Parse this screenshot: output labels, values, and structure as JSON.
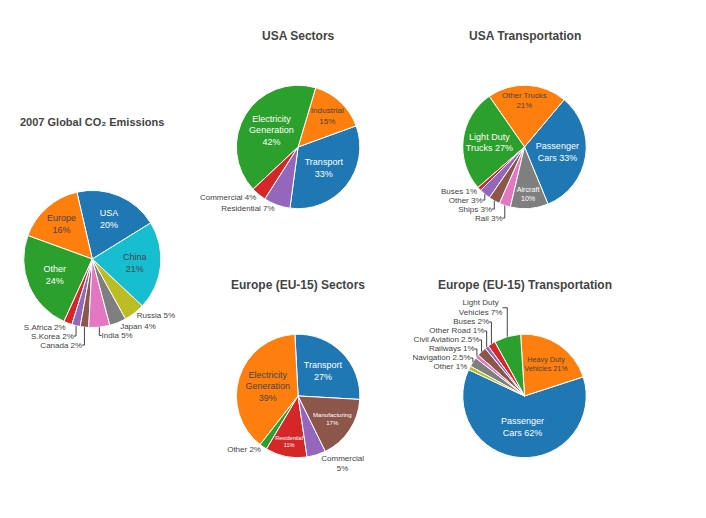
{
  "chart_data": [
    {
      "type": "pie",
      "title": "2007 Global CO₂ Emissions",
      "values": [
        20,
        16,
        24,
        2,
        2,
        2,
        5,
        4,
        5,
        21
      ],
      "value_labels": [
        "USA\n20%",
        "Europe\n16%",
        "Other\n24%",
        "S.Africa 2%",
        "S.Korea 2%",
        "Canada 2%",
        "India 5%",
        "Japan 4%",
        "Russia 5%",
        "China\n21%"
      ],
      "data_labels": true
    },
    {
      "type": "pie",
      "title": "USA Sectors",
      "values": [
        33,
        15,
        42,
        4,
        7
      ],
      "value_labels": [
        "Transport\n33%",
        "Industrial\n15%",
        "Electricity\nGeneration\n42%",
        "Commercial 4%",
        "Residential 7%"
      ],
      "data_labels": true
    },
    {
      "type": "pie",
      "title": "USA Transportation",
      "values": [
        33,
        21,
        27,
        1,
        3,
        3,
        3,
        10
      ],
      "value_labels": [
        "Passenger\nCars 33%",
        "Other Trucks\n21%",
        "Light Duty\nTrucks 27%",
        "Buses 1%",
        "Other 3%",
        "Ships 3%",
        "Rail 3%",
        "Aircraft\n10%"
      ],
      "data_labels": true
    },
    {
      "type": "pie",
      "title": "Europe (EU-15) Sectors",
      "values": [
        27,
        39,
        2,
        11,
        5,
        17
      ],
      "value_labels": [
        "Transport\n27%",
        "Electricity\nGeneration\n39%",
        "Other 2%",
        "Residential\n11%",
        "Commercial\n5%",
        "Manufacturing\n17%"
      ],
      "data_labels": true
    },
    {
      "type": "pie",
      "title": "Europe (EU-15) Transportation",
      "values": [
        62,
        21,
        7,
        2,
        1,
        2.5,
        1,
        2.5,
        1
      ],
      "value_labels": [
        "Passenger\nCars 62%",
        "Heavy Duty\nVehicles 21%",
        "Light Duty\nVehicles 7%",
        "Buses 2%",
        "Other Road 1%",
        "Civil Aviation 2.5%",
        "Railways 1%",
        "Navigation 2.5%",
        "Other 1%"
      ],
      "data_labels": true
    }
  ]
}
